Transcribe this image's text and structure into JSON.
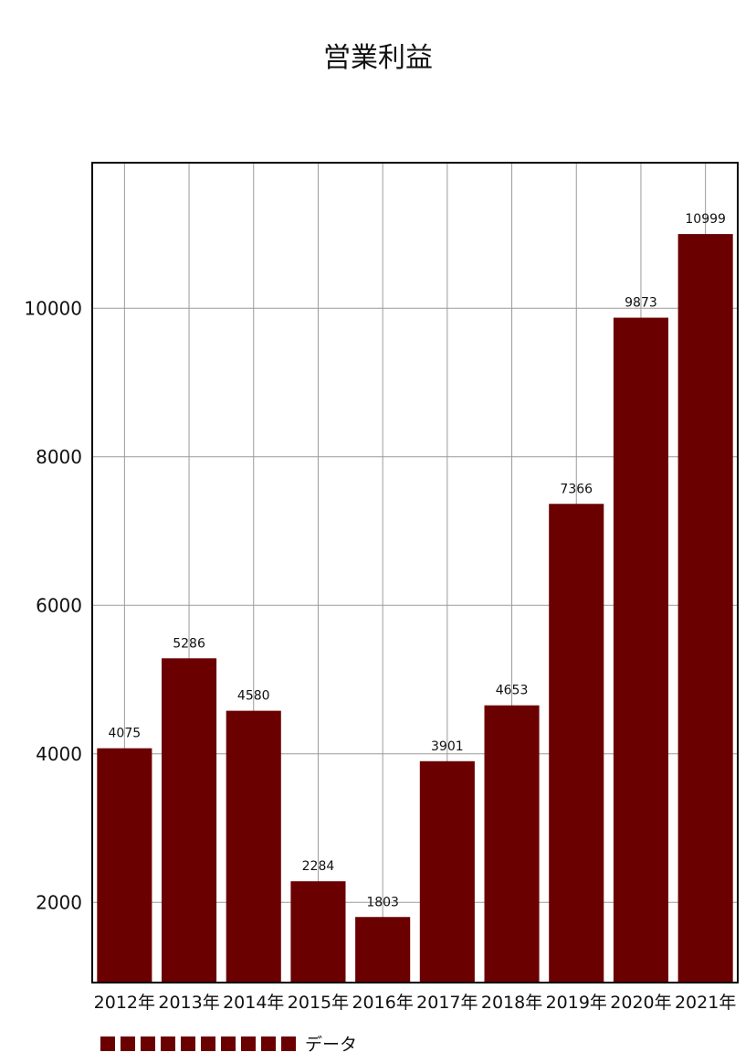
{
  "chart_data": {
    "type": "bar",
    "title": "営業利益",
    "categories": [
      "2012年",
      "2013年",
      "2014年",
      "2015年",
      "2016年",
      "2017年",
      "2018年",
      "2019年",
      "2020年",
      "2021年"
    ],
    "series": [
      {
        "name": "データ",
        "values": [
          4075,
          5286,
          4580,
          2284,
          1803,
          3901,
          4653,
          7366,
          9873,
          10999
        ]
      }
    ],
    "ylim": [
      920,
      11960
    ],
    "yticks": [
      2000,
      4000,
      6000,
      8000,
      10000
    ],
    "grid": true,
    "legend_position": "bottom-left"
  },
  "colors": {
    "bar": "#6b0000",
    "grid": "#9a9a9a",
    "frame": "#000000"
  }
}
